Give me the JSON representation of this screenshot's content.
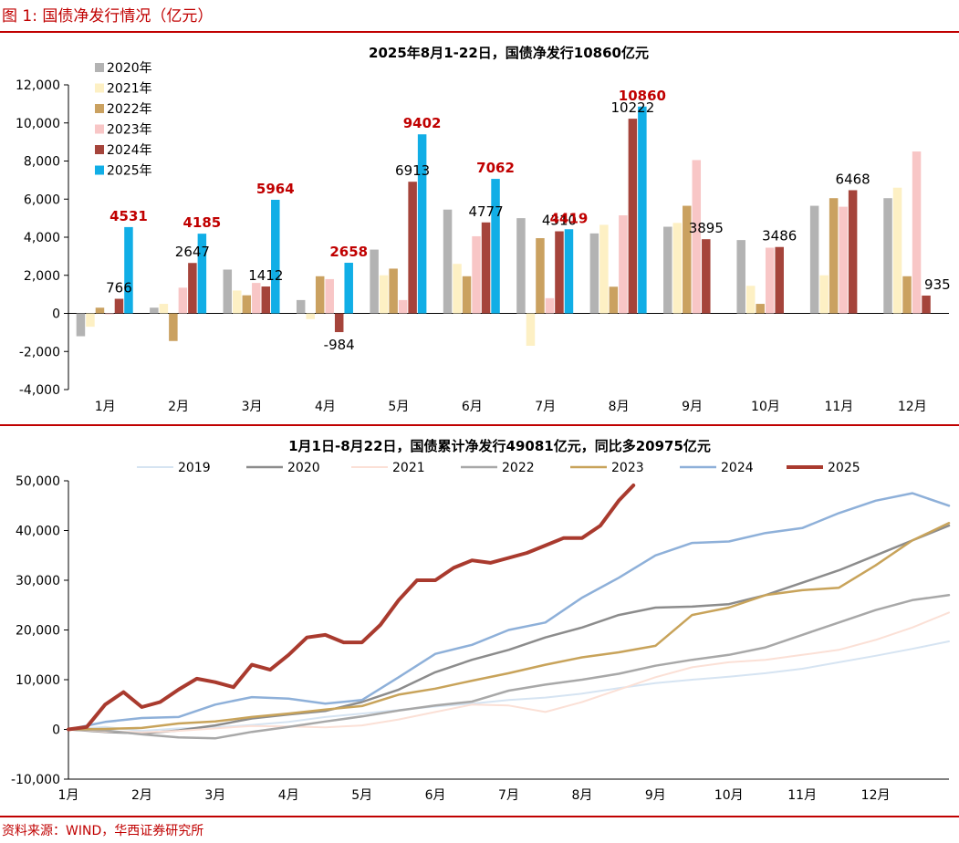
{
  "figure_title": "图 1:  国债净发行情况（亿元）",
  "source": "资料来源：WIND，华西证券研究所",
  "colors": {
    "brand_red": "#c00000",
    "axis": "#000000",
    "label_red": "#c00000"
  },
  "chart_data": [
    {
      "type": "bar",
      "title": "2025年8月1-22日，国债净发行10860亿元",
      "categories": [
        "1月",
        "2月",
        "3月",
        "4月",
        "5月",
        "6月",
        "7月",
        "8月",
        "9月",
        "10月",
        "11月",
        "12月"
      ],
      "ylim": [
        -4000,
        12000
      ],
      "yticks": [
        -4000,
        -2000,
        0,
        2000,
        4000,
        6000,
        8000,
        10000,
        12000
      ],
      "ytick_labels": [
        "-4,000",
        "-2,000",
        "0",
        "2,000",
        "4,000",
        "6,000",
        "8,000",
        "10,000",
        "12,000"
      ],
      "legend_position": "top-left",
      "series": [
        {
          "name": "2020年",
          "color": "#b3b3b3",
          "values": [
            -1200,
            300,
            2300,
            700,
            3350,
            5450,
            5000,
            4200,
            4550,
            3850,
            5650,
            6050
          ]
        },
        {
          "name": "2021年",
          "color": "#fdf0c4",
          "values": [
            -700,
            500,
            1200,
            -300,
            2000,
            2600,
            -1700,
            4650,
            4750,
            1450,
            2000,
            6600
          ]
        },
        {
          "name": "2022年",
          "color": "#caa160",
          "values": [
            300,
            -1450,
            950,
            1950,
            2350,
            1950,
            3950,
            1400,
            5650,
            500,
            6050,
            1950
          ]
        },
        {
          "name": "2023年",
          "color": "#f8c6c6",
          "values": [
            -50,
            1350,
            1600,
            1800,
            700,
            4050,
            800,
            5150,
            8050,
            3450,
            5600,
            8500
          ]
        },
        {
          "name": "2024年",
          "color": "#a5443b",
          "values": [
            766,
            2647,
            1412,
            -984,
            6913,
            4777,
            4310,
            10222,
            3895,
            3486,
            6468,
            935
          ]
        },
        {
          "name": "2025年",
          "color": "#11aee6",
          "values": [
            4531,
            4185,
            5964,
            2658,
            9402,
            7062,
            4419,
            10860,
            null,
            null,
            null,
            null
          ]
        }
      ],
      "data_labels": [
        {
          "series": "2024年",
          "month_index": 0,
          "text": "766",
          "color": "#000000",
          "bold": false
        },
        {
          "series": "2025年",
          "month_index": 0,
          "text": "4531",
          "color": "#c00000",
          "bold": true
        },
        {
          "series": "2024年",
          "month_index": 1,
          "text": "2647",
          "color": "#000000",
          "bold": false
        },
        {
          "series": "2025年",
          "month_index": 1,
          "text": "4185",
          "color": "#c00000",
          "bold": true
        },
        {
          "series": "2024年",
          "month_index": 2,
          "text": "1412",
          "color": "#000000",
          "bold": false
        },
        {
          "series": "2025年",
          "month_index": 2,
          "text": "5964",
          "color": "#c00000",
          "bold": true
        },
        {
          "series": "2024年",
          "month_index": 3,
          "text": "-984",
          "color": "#000000",
          "bold": false
        },
        {
          "series": "2025年",
          "month_index": 3,
          "text": "2658",
          "color": "#c00000",
          "bold": true
        },
        {
          "series": "2024年",
          "month_index": 4,
          "text": "6913",
          "color": "#000000",
          "bold": false
        },
        {
          "series": "2025年",
          "month_index": 4,
          "text": "9402",
          "color": "#c00000",
          "bold": true
        },
        {
          "series": "2024年",
          "month_index": 5,
          "text": "4777",
          "color": "#000000",
          "bold": false
        },
        {
          "series": "2025年",
          "month_index": 5,
          "text": "7062",
          "color": "#c00000",
          "bold": true
        },
        {
          "series": "2024年",
          "month_index": 6,
          "text": "4310",
          "color": "#000000",
          "bold": false
        },
        {
          "series": "2025年",
          "month_index": 6,
          "text": "4419",
          "color": "#c00000",
          "bold": true
        },
        {
          "series": "2024年",
          "month_index": 7,
          "text": "10222",
          "color": "#000000",
          "bold": false
        },
        {
          "series": "2025年",
          "month_index": 7,
          "text": "10860",
          "color": "#c00000",
          "bold": true
        },
        {
          "series": "2024年",
          "month_index": 8,
          "text": "3895",
          "color": "#000000",
          "bold": false
        },
        {
          "series": "2024年",
          "month_index": 9,
          "text": "3486",
          "color": "#000000",
          "bold": false
        },
        {
          "series": "2024年",
          "month_index": 10,
          "text": "6468",
          "color": "#000000",
          "bold": false
        },
        {
          "series": "2024年",
          "month_index": 11,
          "text": "935",
          "color": "#000000",
          "bold": false
        }
      ]
    },
    {
      "type": "line",
      "title": "1月1日-8月22日，国债累计净发行49081亿元，同比多20975亿元",
      "xtick_labels": [
        "1月",
        "2月",
        "3月",
        "4月",
        "5月",
        "6月",
        "7月",
        "8月",
        "9月",
        "10月",
        "11月",
        "12月"
      ],
      "x_unit": "month (1.0 = start of Jan, 13.0 = end of Dec)",
      "xlim": [
        1,
        13
      ],
      "ylim": [
        -10000,
        50000
      ],
      "yticks": [
        -10000,
        0,
        10000,
        20000,
        30000,
        40000,
        50000
      ],
      "ytick_labels": [
        "-10,000",
        "0",
        "10,000",
        "20,000",
        "30,000",
        "40,000",
        "50,000"
      ],
      "legend_position": "top",
      "series": [
        {
          "name": "2019",
          "color": "#d6e4f2",
          "width": 2,
          "x": [
            1.0,
            1.5,
            2.0,
            2.5,
            3.0,
            3.5,
            4.0,
            4.5,
            5.0,
            5.5,
            6.0,
            6.5,
            7.0,
            7.5,
            8.0,
            8.5,
            9.0,
            9.5,
            10.0,
            10.5,
            11.0,
            11.5,
            12.0,
            12.5,
            13.0
          ],
          "y": [
            0,
            500,
            -300,
            200,
            400,
            900,
            1500,
            2500,
            3200,
            3900,
            4600,
            5200,
            5900,
            6400,
            7200,
            8300,
            9300,
            10000,
            10600,
            11300,
            12200,
            13500,
            14800,
            16200,
            17700
          ]
        },
        {
          "name": "2020",
          "color": "#8c8c8c",
          "width": 2.5,
          "x": [
            1.0,
            1.5,
            2.0,
            2.5,
            3.0,
            3.5,
            4.0,
            4.5,
            5.0,
            5.5,
            6.0,
            6.5,
            7.0,
            7.5,
            8.0,
            8.5,
            9.0,
            9.5,
            10.0,
            10.5,
            11.0,
            11.5,
            12.0,
            12.5,
            13.0
          ],
          "y": [
            0,
            -500,
            -800,
            -200,
            800,
            2200,
            3000,
            3700,
            5500,
            8000,
            11500,
            14000,
            16000,
            18500,
            20500,
            23000,
            24500,
            24700,
            25200,
            27000,
            29500,
            32000,
            35000,
            38000,
            41000
          ]
        },
        {
          "name": "2021",
          "color": "#fbe0d6",
          "width": 2,
          "x": [
            1.0,
            1.5,
            2.0,
            2.5,
            3.0,
            3.5,
            4.0,
            4.5,
            5.0,
            5.5,
            6.0,
            6.5,
            7.0,
            7.5,
            8.0,
            8.5,
            9.0,
            9.5,
            10.0,
            10.5,
            11.0,
            11.5,
            12.0,
            12.5,
            13.0
          ],
          "y": [
            0,
            -400,
            -600,
            -300,
            200,
            700,
            600,
            400,
            800,
            2000,
            3500,
            5000,
            4800,
            3500,
            5500,
            8000,
            10500,
            12500,
            13500,
            14000,
            15000,
            16000,
            18000,
            20500,
            23500
          ]
        },
        {
          "name": "2022",
          "color": "#a8a8a8",
          "width": 2.5,
          "x": [
            1.0,
            1.5,
            2.0,
            2.5,
            3.0,
            3.5,
            4.0,
            4.5,
            5.0,
            5.5,
            6.0,
            6.5,
            7.0,
            7.5,
            8.0,
            8.5,
            9.0,
            9.5,
            10.0,
            10.5,
            11.0,
            11.5,
            12.0,
            12.5,
            13.0
          ],
          "y": [
            0,
            -200,
            -1000,
            -1600,
            -1800,
            -500,
            500,
            1600,
            2600,
            3800,
            4800,
            5600,
            7800,
            9000,
            10000,
            11200,
            12800,
            14000,
            15000,
            16500,
            19000,
            21500,
            24000,
            26000,
            27000
          ]
        },
        {
          "name": "2023",
          "color": "#c8a35a",
          "width": 2.5,
          "x": [
            1.0,
            1.5,
            2.0,
            2.5,
            3.0,
            3.5,
            4.0,
            4.5,
            5.0,
            5.5,
            6.0,
            6.5,
            7.0,
            7.5,
            8.0,
            8.5,
            9.0,
            9.5,
            10.0,
            10.5,
            11.0,
            11.5,
            12.0,
            12.5,
            13.0
          ],
          "y": [
            0,
            100,
            300,
            1200,
            1600,
            2500,
            3200,
            4000,
            4700,
            7000,
            8200,
            9800,
            11300,
            13000,
            14500,
            15500,
            16800,
            23000,
            24500,
            27000,
            28000,
            28500,
            33000,
            38000,
            41500
          ]
        },
        {
          "name": "2024",
          "color": "#8eb0d9",
          "width": 2.5,
          "x": [
            1.0,
            1.5,
            2.0,
            2.5,
            3.0,
            3.5,
            4.0,
            4.5,
            5.0,
            5.5,
            6.0,
            6.5,
            7.0,
            7.5,
            8.0,
            8.5,
            9.0,
            9.5,
            10.0,
            10.5,
            11.0,
            11.5,
            12.0,
            12.5,
            13.0
          ],
          "y": [
            0,
            1500,
            2300,
            2500,
            5000,
            6500,
            6200,
            5200,
            5900,
            10500,
            15200,
            17000,
            20000,
            21500,
            26500,
            30500,
            35000,
            37500,
            37800,
            39500,
            40500,
            43500,
            46000,
            47500,
            45000
          ]
        },
        {
          "name": "2025",
          "color": "#a93a2e",
          "width": 4,
          "x": [
            1.0,
            1.25,
            1.5,
            1.75,
            2.0,
            2.25,
            2.5,
            2.75,
            3.0,
            3.25,
            3.5,
            3.75,
            4.0,
            4.25,
            4.5,
            4.75,
            5.0,
            5.25,
            5.5,
            5.75,
            6.0,
            6.25,
            6.5,
            6.75,
            7.0,
            7.25,
            7.5,
            7.75,
            8.0,
            8.25,
            8.5,
            8.7
          ],
          "y": [
            0,
            500,
            5000,
            7500,
            4500,
            5500,
            8000,
            10200,
            9500,
            8500,
            13000,
            12000,
            15000,
            18500,
            19000,
            17500,
            17500,
            21000,
            26000,
            30000,
            30000,
            32500,
            34000,
            33500,
            34500,
            35500,
            37000,
            38500,
            38500,
            41000,
            46000,
            49081
          ]
        }
      ]
    }
  ]
}
